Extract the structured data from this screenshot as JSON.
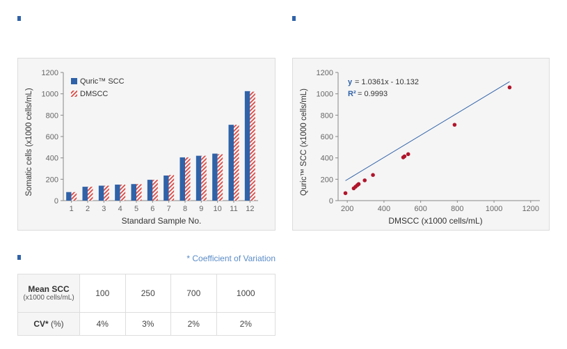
{
  "colors": {
    "accent": "#2f62a8",
    "quric_bar": "#2f62a8",
    "dmscc_bar": "#d9534f",
    "scatter_point": "#b0162c",
    "fit_line": "#2f62a8",
    "note": "#5b8cc7"
  },
  "chart_data": [
    {
      "type": "bar",
      "categories": [
        "1",
        "2",
        "3",
        "4",
        "5",
        "6",
        "7",
        "8",
        "9",
        "10",
        "11",
        "12"
      ],
      "series": [
        {
          "name": "Quric™ SCC",
          "values": [
            80,
            130,
            140,
            150,
            155,
            195,
            235,
            405,
            420,
            440,
            710,
            1025
          ]
        },
        {
          "name": "DMSCC",
          "values": [
            80,
            130,
            140,
            150,
            155,
            195,
            240,
            405,
            420,
            435,
            710,
            1020
          ]
        }
      ],
      "xlabel": "Standard Sample No.",
      "ylabel": "Somatic cells (x1000 cells/mL)",
      "ylim": [
        0,
        1200
      ],
      "yticks": [
        0,
        200,
        400,
        600,
        800,
        1000,
        1200
      ],
      "grid": false,
      "legend": "top-left"
    },
    {
      "type": "scatter",
      "points": [
        {
          "x": 190,
          "y": 70
        },
        {
          "x": 235,
          "y": 115
        },
        {
          "x": 245,
          "y": 130
        },
        {
          "x": 255,
          "y": 145
        },
        {
          "x": 262,
          "y": 155
        },
        {
          "x": 295,
          "y": 190
        },
        {
          "x": 340,
          "y": 240
        },
        {
          "x": 505,
          "y": 405
        },
        {
          "x": 512,
          "y": 415
        },
        {
          "x": 532,
          "y": 435
        },
        {
          "x": 785,
          "y": 710
        },
        {
          "x": 1085,
          "y": 1060
        }
      ],
      "fit": {
        "slope": 1.0361,
        "intercept": -10.132
      },
      "equation_label": "y",
      "equation_text": "= 1.0361x - 10.132",
      "r2_label": "R²",
      "r2_text": "= 0.9993",
      "xlabel": "DMSCC (x1000 cells/mL)",
      "ylabel": "Quric™ SCC (x1000 cells/mL)",
      "xlim": [
        150,
        1250
      ],
      "ylim": [
        0,
        1200
      ],
      "xticks": [
        200,
        400,
        600,
        800,
        1000,
        1200
      ],
      "yticks": [
        0,
        200,
        400,
        600,
        800,
        1000,
        1200
      ],
      "grid": false
    },
    {
      "type": "table",
      "note": "* Coefficient of Variation",
      "row1_header_main": "Mean SCC",
      "row1_header_sub": "(x1000 cells/mL)",
      "row2_header_main": "CV*",
      "row2_header_unit": "(%)",
      "mean_scc": [
        "100",
        "250",
        "700",
        "1000"
      ],
      "cv": [
        "4%",
        "3%",
        "2%",
        "2%"
      ]
    }
  ]
}
